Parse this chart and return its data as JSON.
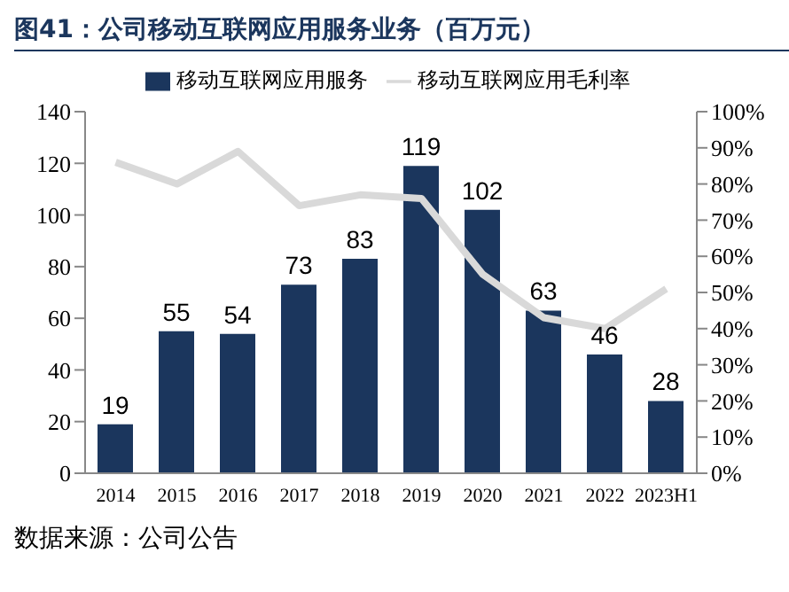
{
  "chart_data": {
    "type": "bar",
    "title": "图41：公司移动互联网应用服务业务（百万元）",
    "annotations": [
      "数据来源：公司公告"
    ],
    "categories": [
      "2014",
      "2015",
      "2016",
      "2017",
      "2018",
      "2019",
      "2020",
      "2021",
      "2022",
      "2023H1"
    ],
    "series": [
      {
        "name": "移动互联网应用服务",
        "color": "#1b365d",
        "values": [
          19,
          55,
          54,
          73,
          83,
          119,
          102,
          63,
          46,
          28
        ],
        "value_labels": [
          "19",
          "55",
          "54",
          "73",
          "83",
          "119",
          "102",
          "63",
          "46",
          "28"
        ]
      },
      {
        "name": "移动互联网应用毛利率",
        "type": "line",
        "axis": "y2",
        "color": "#d9d9d9",
        "values": [
          86,
          80,
          89,
          74,
          77,
          76,
          55,
          43,
          40,
          51
        ]
      }
    ],
    "ylim": [
      0,
      140
    ],
    "yticks": [
      0,
      20,
      40,
      60,
      80,
      100,
      120,
      140
    ],
    "y2lim": [
      0,
      100
    ],
    "y2ticks": [
      {
        "value": 0,
        "label": "0%"
      },
      {
        "value": 10,
        "label": "10%"
      },
      {
        "value": 20,
        "label": "20%"
      },
      {
        "value": 30,
        "label": "30%"
      },
      {
        "value": 40,
        "label": "40%"
      },
      {
        "value": 50,
        "label": "50%"
      },
      {
        "value": 60,
        "label": "60%"
      },
      {
        "value": 70,
        "label": "70%"
      },
      {
        "value": 80,
        "label": "80%"
      },
      {
        "value": 90,
        "label": "90%"
      },
      {
        "value": 100,
        "label": "100%"
      }
    ],
    "legend": "top",
    "marker": "none"
  }
}
